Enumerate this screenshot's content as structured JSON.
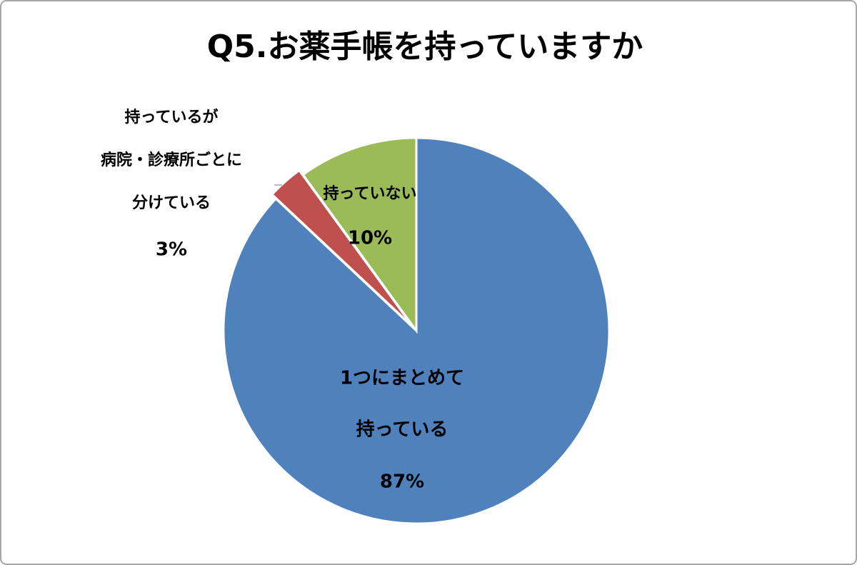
{
  "chart_data": {
    "type": "pie",
    "title": "Q5.お薬手帳を持っていますか",
    "categories": [
      [
        "1つにまとめて",
        "持っている"
      ],
      [
        "持っているが",
        "病院・診療所ごとに",
        "分けている"
      ],
      [
        "持っていない"
      ]
    ],
    "values": [
      87,
      3,
      10
    ],
    "value_labels": [
      "87%",
      "3%",
      "10%"
    ],
    "colors": [
      "#4f81bd",
      "#c0504d",
      "#9bbb59"
    ]
  }
}
